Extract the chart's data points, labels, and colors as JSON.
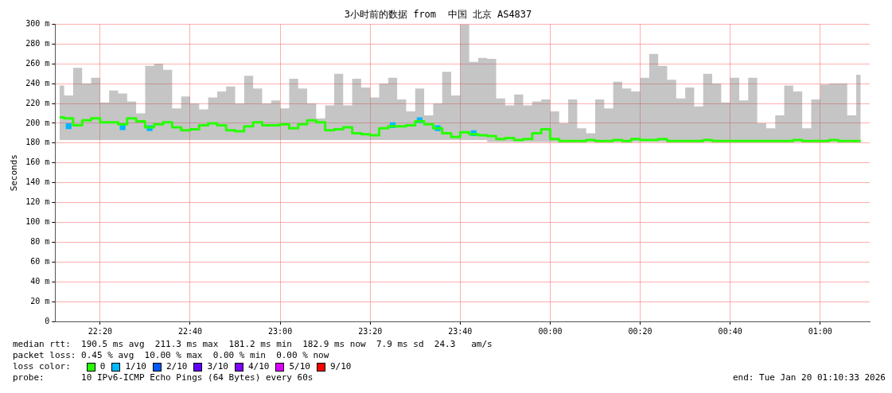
{
  "chart_data": {
    "type": "step",
    "title": "3小时前的数据 from  中国 北京 AS4837",
    "ylabel": "Seconds",
    "x": [
      "2026-01-19T22:11",
      "2026-01-19T22:13",
      "2026-01-19T22:15",
      "2026-01-19T22:17",
      "2026-01-19T22:19",
      "2026-01-19T22:21",
      "2026-01-19T22:23",
      "2026-01-19T22:25",
      "2026-01-19T22:27",
      "2026-01-19T22:29",
      "2026-01-19T22:31",
      "2026-01-19T22:33",
      "2026-01-19T22:35",
      "2026-01-19T22:37",
      "2026-01-19T22:39",
      "2026-01-19T22:41",
      "2026-01-19T22:43",
      "2026-01-19T22:45",
      "2026-01-19T22:47",
      "2026-01-19T22:49",
      "2026-01-19T22:51",
      "2026-01-19T22:53",
      "2026-01-19T22:55",
      "2026-01-19T22:57",
      "2026-01-19T22:59",
      "2026-01-19T23:01",
      "2026-01-19T23:03",
      "2026-01-19T23:05",
      "2026-01-19T23:07",
      "2026-01-19T23:09",
      "2026-01-19T23:11",
      "2026-01-19T23:13",
      "2026-01-19T23:15",
      "2026-01-19T23:17",
      "2026-01-19T23:19",
      "2026-01-19T23:21",
      "2026-01-19T23:23",
      "2026-01-19T23:25",
      "2026-01-19T23:27",
      "2026-01-19T23:29",
      "2026-01-19T23:31",
      "2026-01-19T23:33",
      "2026-01-19T23:35",
      "2026-01-19T23:37",
      "2026-01-19T23:39",
      "2026-01-19T23:41",
      "2026-01-19T23:43",
      "2026-01-19T23:45",
      "2026-01-19T23:47",
      "2026-01-19T23:49",
      "2026-01-19T23:51",
      "2026-01-19T23:53",
      "2026-01-19T23:55",
      "2026-01-19T23:57",
      "2026-01-19T23:59",
      "2026-01-20T00:01",
      "2026-01-20T00:03",
      "2026-01-20T00:05",
      "2026-01-20T00:07",
      "2026-01-20T00:09",
      "2026-01-20T00:11",
      "2026-01-20T00:13",
      "2026-01-20T00:15",
      "2026-01-20T00:17",
      "2026-01-20T00:19",
      "2026-01-20T00:21",
      "2026-01-20T00:23",
      "2026-01-20T00:25",
      "2026-01-20T00:27",
      "2026-01-20T00:29",
      "2026-01-20T00:31",
      "2026-01-20T00:33",
      "2026-01-20T00:35",
      "2026-01-20T00:37",
      "2026-01-20T00:39",
      "2026-01-20T00:41",
      "2026-01-20T00:43",
      "2026-01-20T00:45",
      "2026-01-20T00:47",
      "2026-01-20T00:49",
      "2026-01-20T00:51",
      "2026-01-20T00:53",
      "2026-01-20T00:55",
      "2026-01-20T00:57",
      "2026-01-20T00:59",
      "2026-01-20T01:01",
      "2026-01-20T01:03",
      "2026-01-20T01:05",
      "2026-01-20T01:07",
      "2026-01-20T01:09"
    ],
    "series": [
      {
        "name": "0",
        "color": "#26ff00",
        "values": [
          206,
          205,
          198,
          203,
          205,
          201,
          201,
          199,
          205,
          202,
          196,
          199,
          201,
          196,
          193,
          194,
          198,
          200,
          198,
          193,
          192,
          197,
          201,
          198,
          198,
          199,
          195,
          199,
          203,
          201,
          193,
          194,
          196,
          190,
          189,
          188,
          195,
          197,
          197,
          198,
          202,
          199,
          195,
          190,
          186,
          191,
          189,
          188,
          187,
          184,
          185,
          183,
          184,
          190,
          194,
          184,
          182,
          182,
          182,
          183,
          182,
          182,
          183,
          182,
          184,
          183,
          183,
          184,
          182,
          182,
          182,
          182,
          183,
          182,
          182,
          182,
          182,
          182,
          182,
          182,
          182,
          182,
          183,
          182,
          182,
          182,
          183,
          182,
          182,
          182
        ],
        "lower": [
          183,
          183,
          183,
          183,
          183,
          183,
          183,
          183,
          183,
          183,
          183,
          183,
          183,
          183,
          183,
          183,
          183,
          183,
          183,
          183,
          183,
          183,
          183,
          183,
          183,
          183,
          183,
          183,
          183,
          183,
          183,
          183,
          183,
          183,
          183,
          183,
          183,
          183,
          183,
          183,
          183,
          183,
          183,
          183,
          183,
          183,
          183,
          183,
          181,
          181,
          181,
          181,
          181,
          181,
          181,
          181,
          181,
          181,
          181,
          181,
          181,
          181,
          181,
          181,
          181,
          181,
          181,
          181,
          181,
          181,
          181,
          181,
          181,
          181,
          181,
          181,
          181,
          181,
          181,
          181,
          181,
          181,
          181,
          181,
          181,
          181,
          181,
          181,
          181,
          181
        ],
        "upper": [
          238,
          228,
          256,
          240,
          246,
          221,
          233,
          230,
          222,
          210,
          258,
          260,
          254,
          215,
          227,
          220,
          214,
          226,
          232,
          237,
          220,
          248,
          235,
          220,
          223,
          215,
          245,
          235,
          220,
          205,
          218,
          250,
          218,
          245,
          236,
          226,
          240,
          246,
          224,
          212,
          235,
          208,
          220,
          252,
          228,
          300,
          262,
          266,
          265,
          225,
          218,
          229,
          218,
          222,
          224,
          212,
          200,
          224,
          195,
          190,
          224,
          215,
          242,
          235,
          232,
          246,
          270,
          258,
          244,
          225,
          236,
          217,
          250,
          240,
          221,
          246,
          223,
          246,
          200,
          195,
          208,
          238,
          232,
          195,
          224,
          239,
          240,
          240,
          208,
          249
        ]
      },
      {
        "name": "1/10",
        "type": "scatter",
        "color": "#00b8ff",
        "x": [
          "2026-01-19T22:13",
          "2026-01-19T22:25",
          "2026-01-19T22:31",
          "2026-01-19T23:25",
          "2026-01-19T23:31",
          "2026-01-19T23:35",
          "2026-01-19T23:43"
        ],
        "values": [
          197,
          196,
          195,
          198,
          203,
          195,
          190
        ]
      },
      {
        "name": "2/10",
        "type": "scatter",
        "color": "#0059ff",
        "values": [
          null,
          null,
          null,
          null,
          null,
          null,
          null,
          null,
          null,
          null,
          null,
          null,
          null,
          null,
          null,
          null,
          null,
          null,
          null,
          null,
          null,
          null,
          null,
          null,
          null,
          null,
          null,
          null,
          null,
          null,
          null,
          null,
          null,
          null,
          null,
          null,
          null,
          null,
          null,
          null,
          null,
          null,
          null,
          null,
          null,
          null,
          null,
          null,
          null,
          null,
          null,
          null,
          null,
          null,
          null,
          null,
          null,
          null,
          null,
          null,
          null,
          null,
          null,
          null,
          null,
          null,
          null,
          null,
          null,
          null,
          null,
          null,
          null,
          null,
          null,
          null,
          null,
          null,
          null,
          null,
          null,
          null,
          null,
          null,
          null,
          null,
          null,
          null,
          null,
          null
        ]
      },
      {
        "name": "3/10",
        "type": "scatter",
        "color": "#5e00ff",
        "values": [
          null,
          null,
          null,
          null,
          null,
          null,
          null,
          null,
          null,
          null,
          null,
          null,
          null,
          null,
          null,
          null,
          null,
          null,
          null,
          null,
          null,
          null,
          null,
          null,
          null,
          null,
          null,
          null,
          null,
          null,
          null,
          null,
          null,
          null,
          null,
          null,
          null,
          null,
          null,
          null,
          null,
          null,
          null,
          null,
          null,
          null,
          null,
          null,
          null,
          null,
          null,
          null,
          null,
          null,
          null,
          null,
          null,
          null,
          null,
          null,
          null,
          null,
          null,
          null,
          null,
          null,
          null,
          null,
          null,
          null,
          null,
          null,
          null,
          null,
          null,
          null,
          null,
          null,
          null,
          null,
          null,
          null,
          null,
          null,
          null,
          null,
          null,
          null,
          null,
          null
        ]
      },
      {
        "name": "4/10",
        "type": "scatter",
        "color": "#7e00ff",
        "values": [
          null,
          null,
          null,
          null,
          null,
          null,
          null,
          null,
          null,
          null,
          null,
          null,
          null,
          null,
          null,
          null,
          null,
          null,
          null,
          null,
          null,
          null,
          null,
          null,
          null,
          null,
          null,
          null,
          null,
          null,
          null,
          null,
          null,
          null,
          null,
          null,
          null,
          null,
          null,
          null,
          null,
          null,
          null,
          null,
          null,
          null,
          null,
          null,
          null,
          null,
          null,
          null,
          null,
          null,
          null,
          null,
          null,
          null,
          null,
          null,
          null,
          null,
          null,
          null,
          null,
          null,
          null,
          null,
          null,
          null,
          null,
          null,
          null,
          null,
          null,
          null,
          null,
          null,
          null,
          null,
          null,
          null,
          null,
          null,
          null,
          null,
          null,
          null,
          null,
          null
        ]
      },
      {
        "name": "5/10",
        "type": "scatter",
        "color": "#dd00ff",
        "values": [
          null,
          null,
          null,
          null,
          null,
          null,
          null,
          null,
          null,
          null,
          null,
          null,
          null,
          null,
          null,
          null,
          null,
          null,
          null,
          null,
          null,
          null,
          null,
          null,
          null,
          null,
          null,
          null,
          null,
          null,
          null,
          null,
          null,
          null,
          null,
          null,
          null,
          null,
          null,
          null,
          null,
          null,
          null,
          null,
          null,
          null,
          null,
          null,
          null,
          null,
          null,
          null,
          null,
          null,
          null,
          null,
          null,
          null,
          null,
          null,
          null,
          null,
          null,
          null,
          null,
          null,
          null,
          null,
          null,
          null,
          null,
          null,
          null,
          null,
          null,
          null,
          null,
          null,
          null,
          null,
          null,
          null,
          null,
          null,
          null,
          null,
          null,
          null,
          null,
          null
        ]
      },
      {
        "name": "9/10",
        "type": "scatter",
        "color": "#ff0000",
        "values": [
          null,
          null,
          null,
          null,
          null,
          null,
          null,
          null,
          null,
          null,
          null,
          null,
          null,
          null,
          null,
          null,
          null,
          null,
          null,
          null,
          null,
          null,
          null,
          null,
          null,
          null,
          null,
          null,
          null,
          null,
          null,
          null,
          null,
          null,
          null,
          null,
          null,
          null,
          null,
          null,
          null,
          null,
          null,
          null,
          null,
          null,
          null,
          null,
          null,
          null,
          null,
          null,
          null,
          null,
          null,
          null,
          null,
          null,
          null,
          null,
          null,
          null,
          null,
          null,
          null,
          null,
          null,
          null,
          null,
          null,
          null,
          null,
          null,
          null,
          null,
          null,
          null,
          null,
          null,
          null,
          null,
          null,
          null,
          null,
          null,
          null,
          null,
          null,
          null,
          null
        ]
      }
    ],
    "xlim": [
      "2026-01-19T22:10",
      "2026-01-20T01:11"
    ],
    "xticks": [
      {
        "value": "2026-01-19T22:20",
        "label": "22:20"
      },
      {
        "value": "2026-01-19T22:40",
        "label": "22:40"
      },
      {
        "value": "2026-01-19T23:00",
        "label": "23:00"
      },
      {
        "value": "2026-01-19T23:20",
        "label": "23:20"
      },
      {
        "value": "2026-01-19T23:40",
        "label": "23:40"
      },
      {
        "value": "2026-01-20T00:00",
        "label": "00:00"
      },
      {
        "value": "2026-01-20T00:20",
        "label": "00:20"
      },
      {
        "value": "2026-01-20T00:40",
        "label": "00:40"
      },
      {
        "value": "2026-01-20T01:00",
        "label": "01:00"
      }
    ],
    "ylim": [
      0,
      300
    ],
    "yticks": [
      0,
      {
        "value": 20,
        "label": "20 m"
      },
      {
        "value": 40,
        "label": "40 m"
      },
      {
        "value": 60,
        "label": "60 m"
      },
      {
        "value": 80,
        "label": "80 m"
      },
      {
        "value": 100,
        "label": "100 m"
      },
      {
        "value": 120,
        "label": "120 m"
      },
      {
        "value": 140,
        "label": "140 m"
      },
      {
        "value": 160,
        "label": "160 m"
      },
      {
        "value": 180,
        "label": "180 m"
      },
      {
        "value": 200,
        "label": "200 m"
      },
      {
        "value": 220,
        "label": "220 m"
      },
      {
        "value": 240,
        "label": "240 m"
      },
      {
        "value": 260,
        "label": "260 m"
      },
      {
        "value": 280,
        "label": "280 m"
      },
      {
        "value": 300,
        "label": "300 m"
      }
    ],
    "grid": true,
    "legend": "bottom",
    "annotations": [
      "median rtt:  190.5 ms avg  211.3 ms max  181.2 ms min  182.9 ms now  7.9 ms sd  24.3   am/s",
      "packet loss: 0.45 % avg  10.00 % max  0.00 % min  0.00 % now",
      "loss color:",
      "probe:       10 IPv6-ICMP Echo Pings (64 Bytes) every 60s",
      "end: Tue Jan 20 01:10:33 2026"
    ]
  }
}
